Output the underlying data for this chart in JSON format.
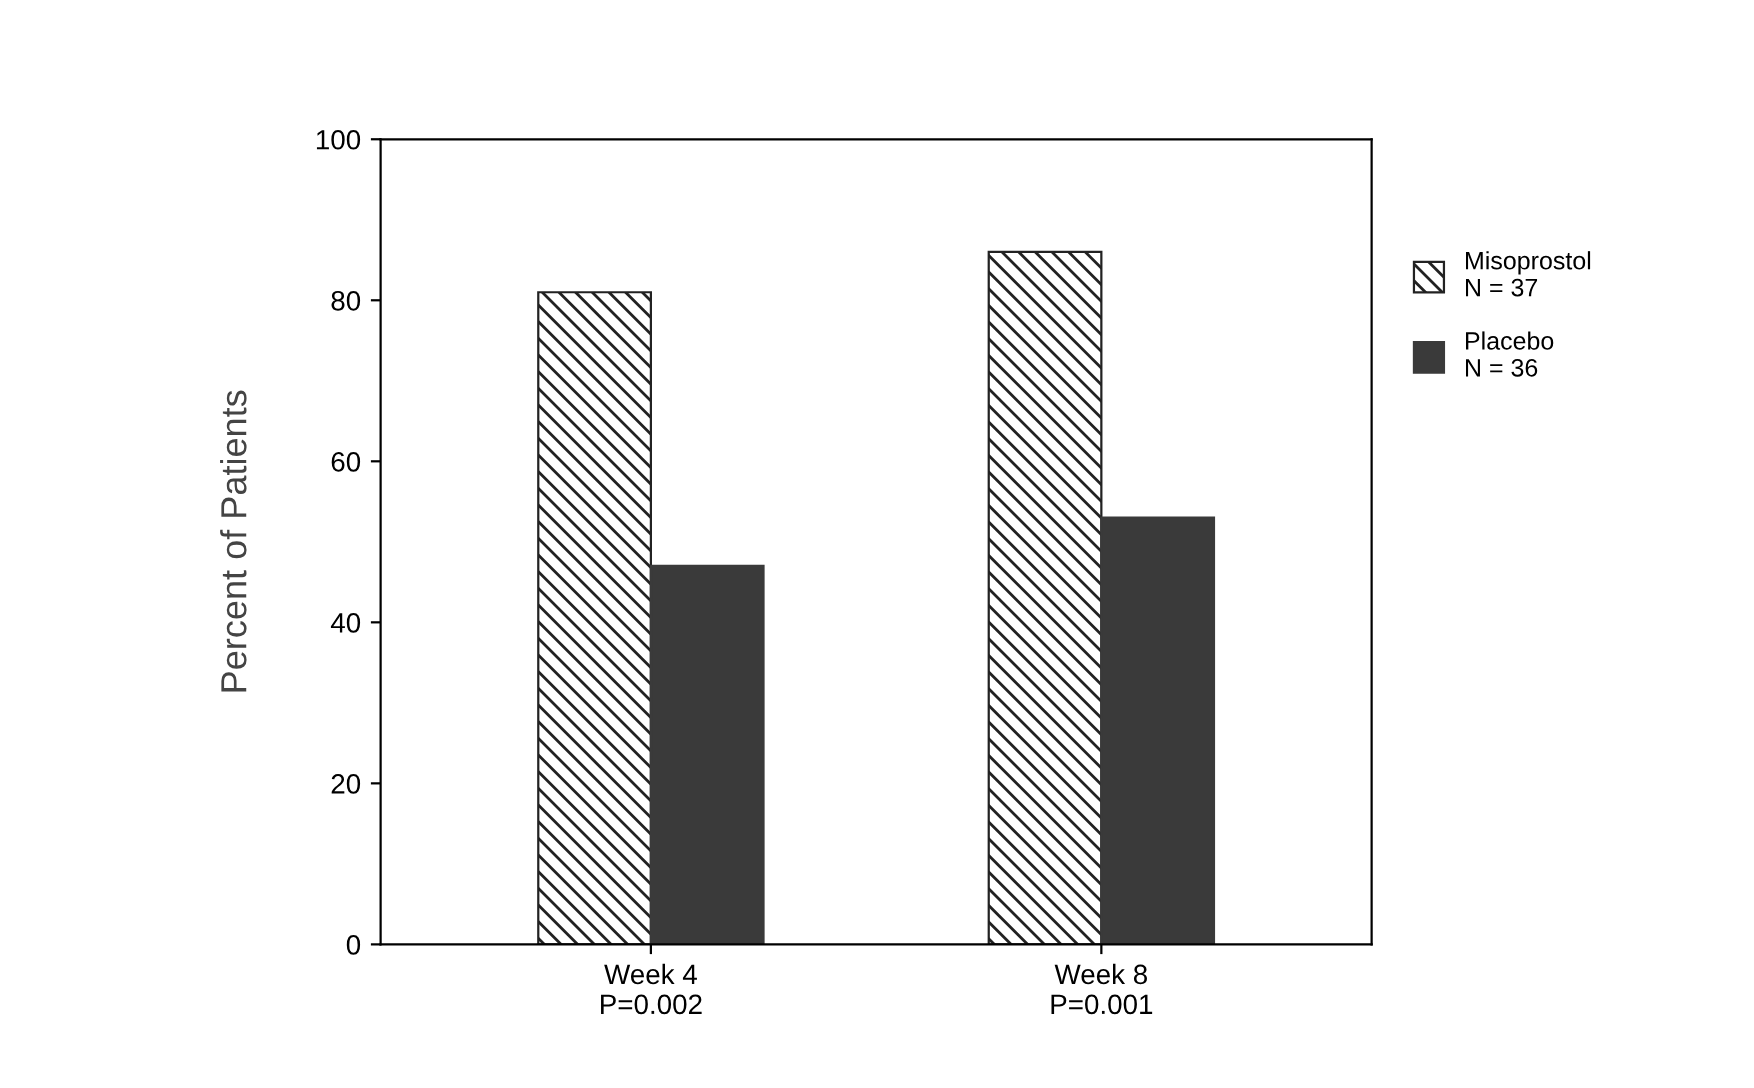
{
  "chart_data": {
    "type": "bar",
    "ylabel": "Percent of Patients",
    "categories": [
      "Week 4\nP=0.002",
      "Week 8\nP=0.001"
    ],
    "series": [
      {
        "name": "Misoprostol\nN = 37",
        "color": "#222222",
        "values": [
          81,
          86
        ]
      },
      {
        "name": "Placebo\nN = 36",
        "color": "#3a3a3a",
        "values": [
          47,
          53
        ]
      }
    ],
    "ylim": [
      0,
      100
    ],
    "yticks": [
      0,
      20,
      40,
      60,
      80,
      100
    ],
    "grid": false,
    "legend": "right"
  }
}
